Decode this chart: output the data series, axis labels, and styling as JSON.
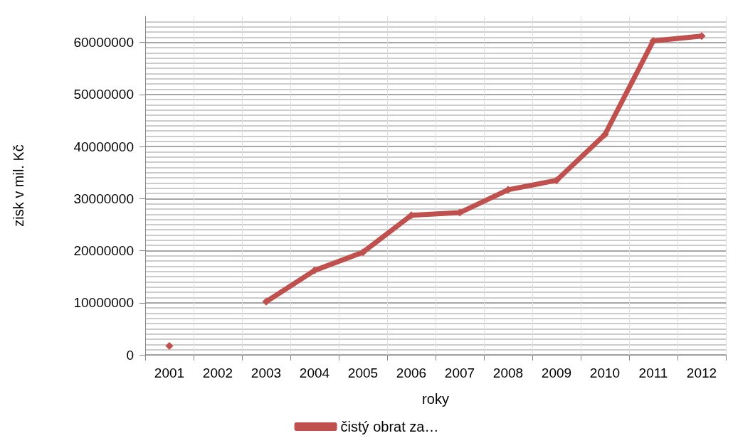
{
  "chart_data": {
    "type": "line",
    "xlabel": "roky",
    "ylabel": "zisk v mil. Kč",
    "categories": [
      "2001",
      "2002",
      "2003",
      "2004",
      "2005",
      "2006",
      "2007",
      "2008",
      "2009",
      "2010",
      "2011",
      "2012"
    ],
    "series": [
      {
        "name": "čistý obrat za…",
        "color": "#c0504d",
        "values": [
          1700000,
          null,
          10200000,
          16200000,
          19700000,
          26800000,
          27300000,
          31700000,
          33500000,
          42300000,
          60300000,
          61200000
        ]
      }
    ],
    "ylim": [
      0,
      65000000
    ],
    "yticks": [
      0,
      10000000,
      20000000,
      30000000,
      40000000,
      50000000,
      60000000
    ],
    "grid": true,
    "legend": "bottom",
    "marker": "diamond",
    "line_style": "solid"
  }
}
